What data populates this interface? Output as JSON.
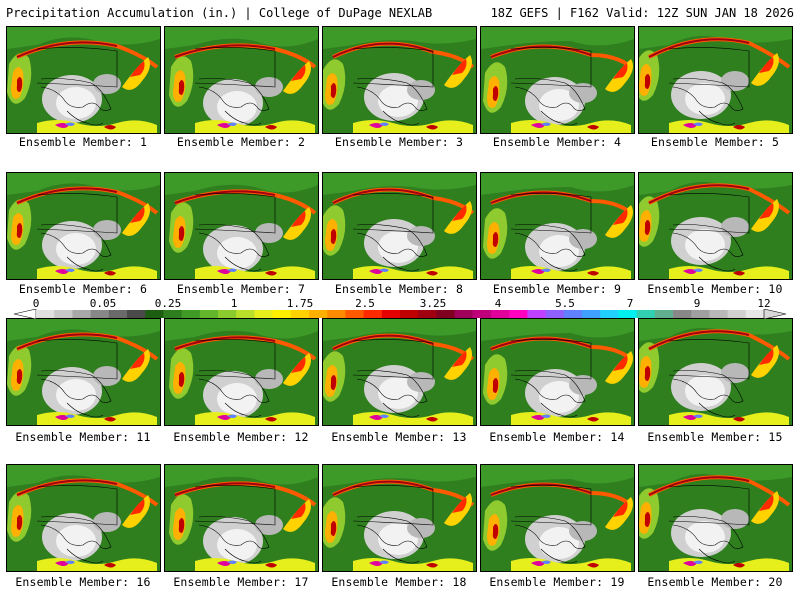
{
  "header": {
    "left": "Precipitation Accumulation (in.) | College of DuPage NEXLAB",
    "right": "18Z GEFS | F162 Valid: 12Z SUN JAN 18 2026"
  },
  "members": [
    {
      "label": "Ensemble Member: 1"
    },
    {
      "label": "Ensemble Member: 2"
    },
    {
      "label": "Ensemble Member: 3"
    },
    {
      "label": "Ensemble Member: 4"
    },
    {
      "label": "Ensemble Member: 5"
    },
    {
      "label": "Ensemble Member: 6"
    },
    {
      "label": "Ensemble Member: 7"
    },
    {
      "label": "Ensemble Member: 8"
    },
    {
      "label": "Ensemble Member: 9"
    },
    {
      "label": "Ensemble Member: 10"
    },
    {
      "label": "Ensemble Member: 11"
    },
    {
      "label": "Ensemble Member: 12"
    },
    {
      "label": "Ensemble Member: 13"
    },
    {
      "label": "Ensemble Member: 14"
    },
    {
      "label": "Ensemble Member: 15"
    },
    {
      "label": "Ensemble Member: 16"
    },
    {
      "label": "Ensemble Member: 17"
    },
    {
      "label": "Ensemble Member: 18"
    },
    {
      "label": "Ensemble Member: 19"
    },
    {
      "label": "Ensemble Member: 20"
    }
  ],
  "colorbar": {
    "tick_labels": [
      "0",
      "0.05",
      "0.25",
      "1",
      "1.75",
      "2.5",
      "3.25",
      "4",
      "5.5",
      "7",
      "9",
      "12"
    ],
    "colors": [
      "#e0e0e0",
      "#c8c8c8",
      "#a8a8a8",
      "#888888",
      "#6a6a6a",
      "#4a4a4a",
      "#1e5e12",
      "#2e7d1e",
      "#3f9a26",
      "#63b52c",
      "#8ccb2e",
      "#b8df2a",
      "#e6ef1c",
      "#fff000",
      "#ffd200",
      "#ffb000",
      "#ff8c00",
      "#ff5a00",
      "#ff2a00",
      "#e60000",
      "#c00000",
      "#a00010",
      "#800020",
      "#a0005a",
      "#c0007a",
      "#e0009c",
      "#ff00c0",
      "#c040ff",
      "#9060ff",
      "#6080ff",
      "#40a0ff",
      "#20d0ff",
      "#00f0f0",
      "#30d0b0",
      "#60b090",
      "#888888",
      "#a0a0a0",
      "#b8b8b8",
      "#d0d0d0",
      "#e6e6e6"
    ]
  }
}
